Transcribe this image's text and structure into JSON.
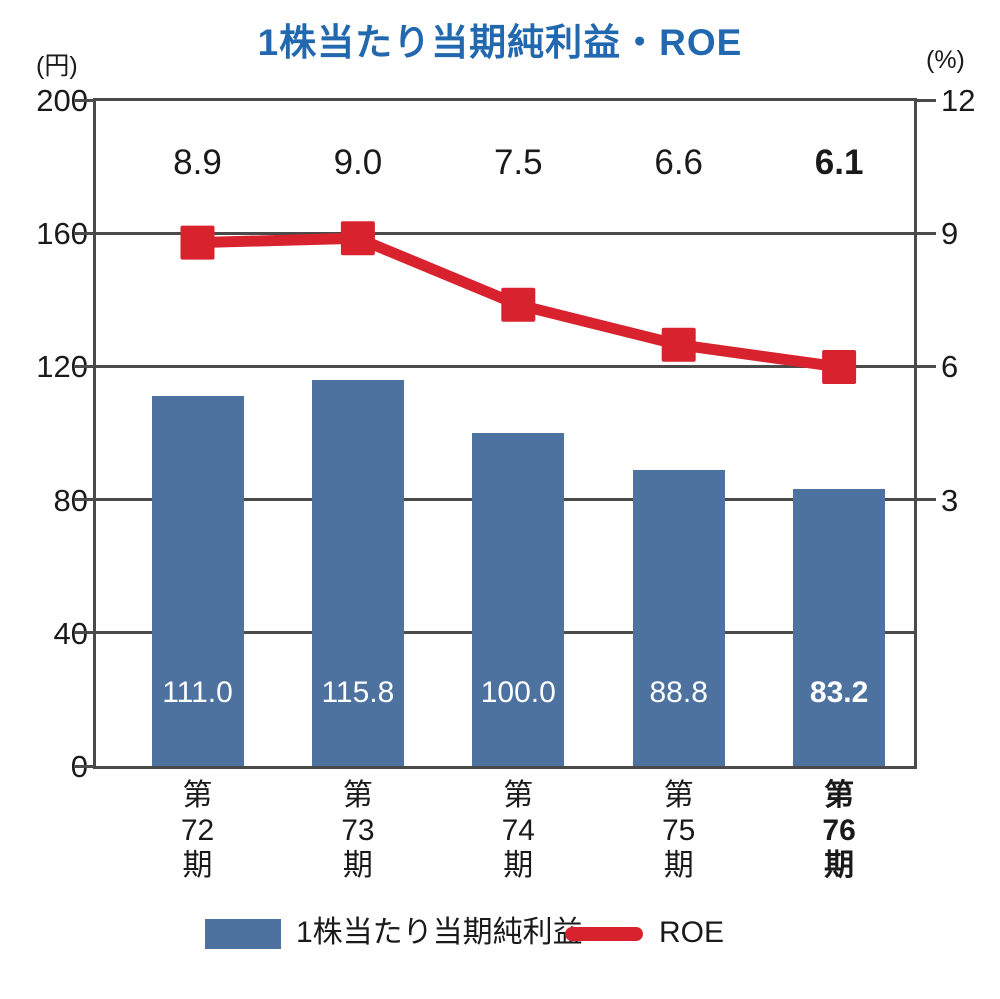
{
  "title": "1株当たり当期純利益・ROE",
  "left_axis_unit": "(円)",
  "right_axis_unit": "(%)",
  "legend": {
    "bar_label": "1株当たり当期純利益",
    "line_label": "ROE"
  },
  "colors": {
    "bar": "#4e72a0",
    "line": "#d8232f",
    "title": "#2268ae",
    "axis": "#4a4a4a",
    "bar_value_text": "#ffffff"
  },
  "chart_data": {
    "type": "bar+line",
    "title": "1株当たり当期純利益・ROE",
    "categories": [
      "第72期",
      "第73期",
      "第74期",
      "第75期",
      "第76期"
    ],
    "category_lines": [
      [
        "第",
        "72",
        "期"
      ],
      [
        "第",
        "73",
        "期"
      ],
      [
        "第",
        "74",
        "期"
      ],
      [
        "第",
        "75",
        "期"
      ],
      [
        "第",
        "76",
        "期"
      ]
    ],
    "series": [
      {
        "name": "1株当たり当期純利益",
        "type": "bar",
        "unit": "円",
        "values": [
          111.0,
          115.8,
          100.0,
          88.8,
          83.2
        ],
        "labels": [
          "111.0",
          "115.8",
          "100.0",
          "88.8",
          "83.2"
        ]
      },
      {
        "name": "ROE",
        "type": "line",
        "unit": "%",
        "values": [
          8.9,
          9.0,
          7.5,
          6.6,
          6.1
        ],
        "labels": [
          "8.9",
          "9.0",
          "7.5",
          "6.6",
          "6.1"
        ]
      }
    ],
    "left_axis": {
      "unit": "(円)",
      "min": 0,
      "max": 200,
      "ticks": [
        200,
        160,
        120,
        80,
        40,
        0
      ]
    },
    "right_axis": {
      "unit": "(%)",
      "ticks": [
        12,
        9,
        6,
        3
      ],
      "aligned_left_values": [
        200,
        160,
        120,
        80
      ]
    },
    "emphasized_index": 4,
    "grid": true,
    "legend_position": "bottom"
  }
}
